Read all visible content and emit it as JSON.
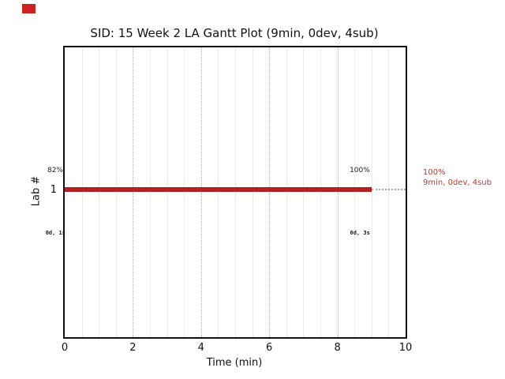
{
  "marker": {
    "color": "#cc2222"
  },
  "chart_data": {
    "type": "bar",
    "title": "SID: 15 Week 2 LA Gantt Plot (9min, 0dev, 4sub)",
    "xlabel": "Time (min)",
    "ylabel": "Lab #",
    "xlim": [
      0,
      10
    ],
    "x_ticks": [
      0,
      2,
      4,
      6,
      8,
      10
    ],
    "y_ticks": [
      "1"
    ],
    "grid": {
      "minor_step": 0.5,
      "major_ticks": [
        2,
        4,
        6,
        8
      ],
      "horizontal": false
    },
    "bars": [
      {
        "lab": "1",
        "start_min": 0,
        "end_min": 9,
        "color": "#b22222",
        "start_label": "82%",
        "end_label": "100%",
        "start_sublabel": "0d, 1s",
        "end_sublabel": "0d, 3s"
      }
    ],
    "annotation": {
      "line1": "100%",
      "line2": "9min, 0dev, 4sub",
      "color": "#c0392b"
    }
  }
}
